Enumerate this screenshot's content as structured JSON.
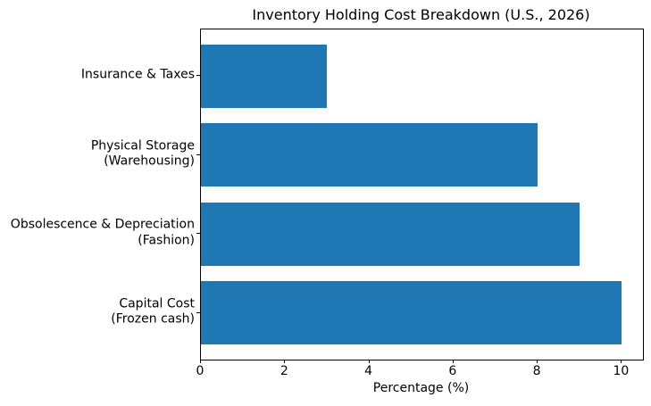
{
  "chart_data": {
    "type": "bar",
    "orientation": "horizontal",
    "title": "Inventory Holding Cost Breakdown (U.S., 2026)",
    "xlabel": "Percentage (%)",
    "ylabel": "",
    "categories": [
      "Insurance & Taxes",
      "Physical Storage\n(Warehousing)",
      "Obsolescence & Depreciation\n(Fashion)",
      "Capital Cost\n(Frozen cash)"
    ],
    "values": [
      3,
      8,
      9,
      10
    ],
    "xlim": [
      0,
      10.5
    ],
    "xticks": [
      0,
      2,
      4,
      6,
      8,
      10
    ],
    "bar_color": "#1f77b4",
    "spine_color": "#000000",
    "background_color": "#ffffff",
    "grid": false,
    "legend": false
  }
}
